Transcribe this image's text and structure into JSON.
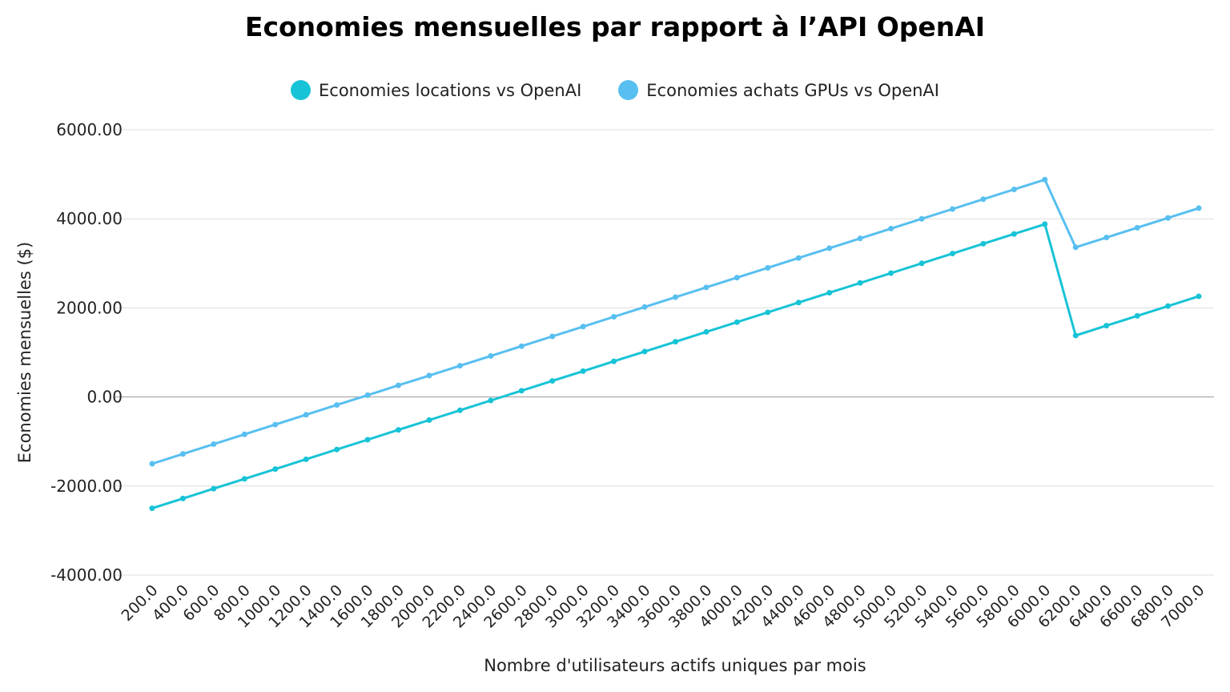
{
  "chart_data": {
    "type": "line",
    "title": "Economies mensuelles par rapport à l’API OpenAI",
    "xlabel": "Nombre d'utilisateurs actifs uniques par mois",
    "ylabel": "Economies mensuelles ($)",
    "ylim": [
      -4000,
      6000
    ],
    "yticks": [
      6000,
      4000,
      2000,
      0,
      -2000,
      -4000
    ],
    "ytick_labels": [
      "6000.00",
      "4000.00",
      "2000.00",
      "0.00",
      "-2000.00",
      "-4000.00"
    ],
    "grid": true,
    "legend_position": "top-center",
    "categories": [
      "200.0",
      "400.0",
      "600.0",
      "800.0",
      "1000.0",
      "1200.0",
      "1400.0",
      "1600.0",
      "1800.0",
      "2000.0",
      "2200.0",
      "2400.0",
      "2600.0",
      "2800.0",
      "3000.0",
      "3200.0",
      "3400.0",
      "3600.0",
      "3800.0",
      "4000.0",
      "4200.0",
      "4400.0",
      "4600.0",
      "4800.0",
      "5000.0",
      "5200.0",
      "5400.0",
      "5600.0",
      "5800.0",
      "6000.0",
      "6200.0",
      "6400.0",
      "6600.0",
      "6800.0",
      "7000.0"
    ],
    "series": [
      {
        "name": "Economies locations vs OpenAI",
        "color": "#17c3d6",
        "values": [
          -2500,
          -2280,
          -2060,
          -1840,
          -1620,
          -1400,
          -1180,
          -960,
          -740,
          -520,
          -300,
          -80,
          140,
          360,
          580,
          800,
          1020,
          1240,
          1460,
          1680,
          1900,
          2120,
          2340,
          2560,
          2780,
          3000,
          3220,
          3440,
          3660,
          3880,
          1380,
          1600,
          1820,
          2040,
          2260
        ]
      },
      {
        "name": "Economies achats GPUs vs OpenAI",
        "color": "#58bff0",
        "values": [
          -1500,
          -1280,
          -1060,
          -840,
          -620,
          -400,
          -180,
          40,
          260,
          480,
          700,
          920,
          1140,
          1360,
          1580,
          1800,
          2020,
          2240,
          2460,
          2680,
          2900,
          3120,
          3340,
          3560,
          3780,
          4000,
          4220,
          4440,
          4660,
          4880,
          3360,
          3580,
          3800,
          4020,
          4240
        ]
      }
    ]
  }
}
